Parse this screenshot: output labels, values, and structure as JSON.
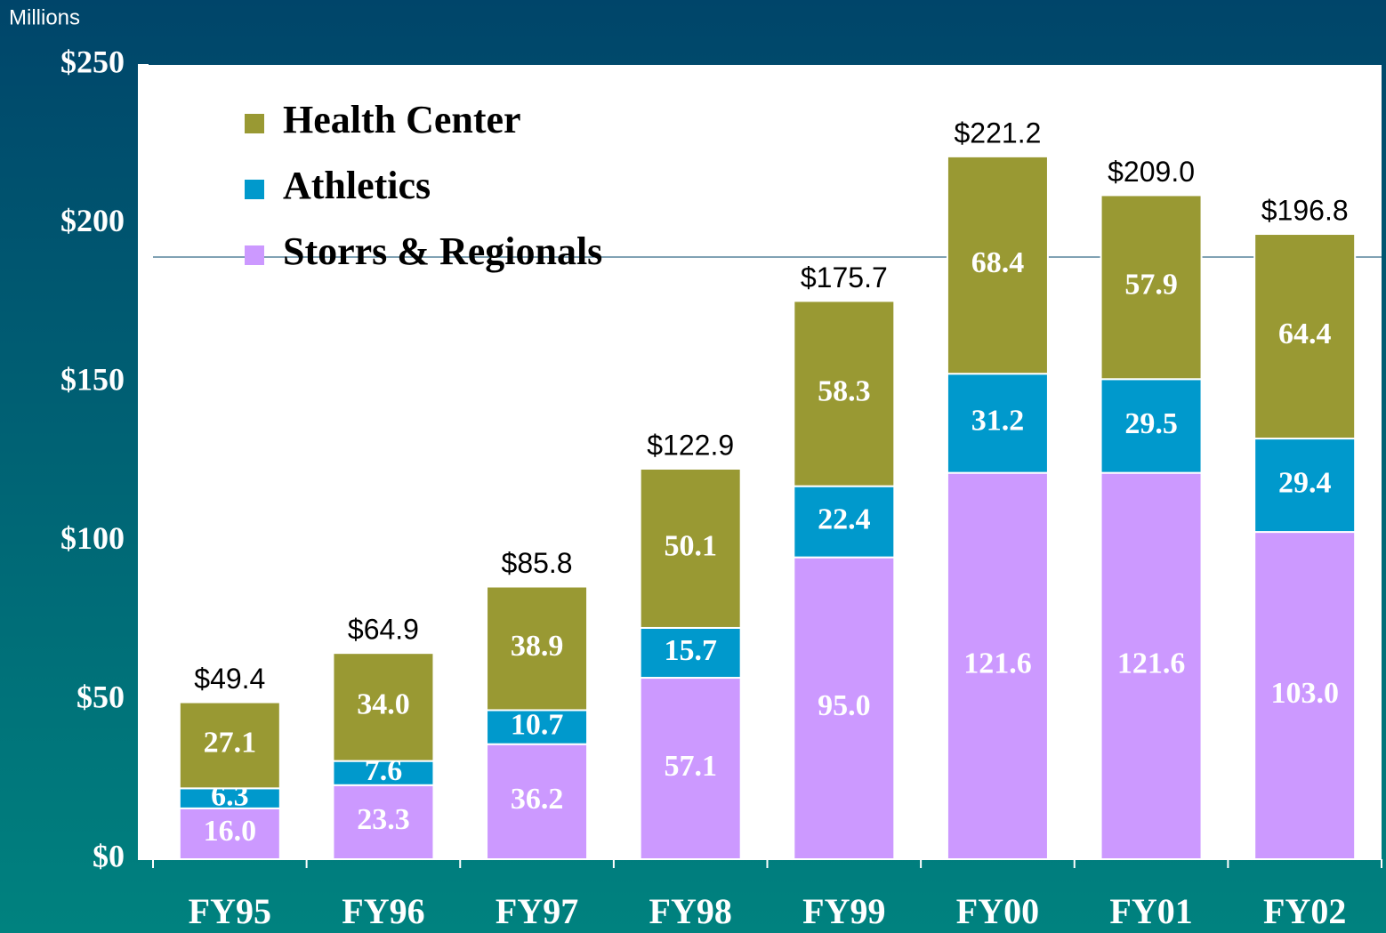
{
  "chart_data": {
    "type": "stacked_bar",
    "unit_label": "Millions",
    "categories": [
      "FY95",
      "FY96",
      "FY97",
      "FY98",
      "FY99",
      "FY00",
      "FY01",
      "FY02"
    ],
    "series": [
      {
        "name": "Storrs & Regionals",
        "color": "#cc99ff",
        "values": [
          16.0,
          23.3,
          36.2,
          57.1,
          95.0,
          121.6,
          121.6,
          103.0
        ],
        "value_labels": [
          "16.0",
          "23.3",
          "36.2",
          "57.1",
          "95.0",
          "121.6",
          "121.6",
          "103.0"
        ]
      },
      {
        "name": "Athletics",
        "color": "#0099cc",
        "values": [
          6.3,
          7.6,
          10.7,
          15.7,
          22.4,
          31.2,
          29.5,
          29.4
        ],
        "value_labels": [
          "6.3",
          "7.6",
          "10.7",
          "15.7",
          "22.4",
          "31.2",
          "29.5",
          "29.4"
        ]
      },
      {
        "name": "Health Center",
        "color": "#999933",
        "values": [
          27.1,
          34.0,
          38.9,
          50.1,
          58.3,
          68.4,
          57.9,
          64.4
        ],
        "value_labels": [
          "27.1",
          "34.0",
          "38.9",
          "50.1",
          "58.3",
          "68.4",
          "57.9",
          "64.4"
        ]
      }
    ],
    "total_labels": [
      "$49.4",
      "$64.9",
      "$85.8",
      "$122.9",
      "$175.7",
      "$221.2",
      "$209.0",
      "$196.8"
    ],
    "ylim": [
      0,
      250
    ],
    "yticks": [
      {
        "value": 0,
        "label": "$0"
      },
      {
        "value": 50,
        "label": "$50"
      },
      {
        "value": 100,
        "label": "$100"
      },
      {
        "value": 150,
        "label": "$150"
      },
      {
        "value": 200,
        "label": "$200"
      },
      {
        "value": 250,
        "label": "$250"
      }
    ],
    "legend": "top-left"
  }
}
